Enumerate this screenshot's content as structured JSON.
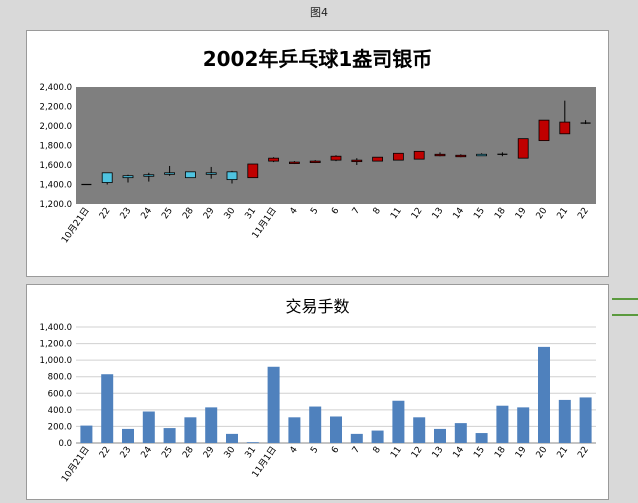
{
  "figure_label": "图4",
  "colors": {
    "plot_bg_candle": "#7f7f7f",
    "up_candle": "#c00000",
    "down_candle": "#4fc3e0",
    "volume_bar": "#4f81bd",
    "grid": "#d0d0d0",
    "side_line": "#5b9a3e"
  },
  "chart_data": [
    {
      "type": "candlestick",
      "title": "2002年乒乓球1盎司银币",
      "categories": [
        "10月21日",
        "22",
        "23",
        "24",
        "25",
        "28",
        "29",
        "30",
        "31",
        "11月1日",
        "4",
        "5",
        "6",
        "7",
        "8",
        "11",
        "12",
        "13",
        "14",
        "15",
        "18",
        "19",
        "20",
        "21",
        "22"
      ],
      "ylim": [
        1200,
        2400
      ],
      "yticks": [
        "1,200.0",
        "1,400.0",
        "1,600.0",
        "1,800.0",
        "2,000.0",
        "2,200.0",
        "2,400.0"
      ],
      "ytick_values": [
        1200,
        1400,
        1600,
        1800,
        2000,
        2200,
        2400
      ],
      "grid": false,
      "series": [
        {
          "values_open": [
            1400,
            1520,
            1490,
            1500,
            1520,
            1530,
            1520,
            1530,
            1470,
            1640,
            1620,
            1630,
            1650,
            1640,
            1640,
            1650,
            1660,
            1700,
            1690,
            1710,
            1710,
            1670,
            1850,
            1920,
            2030
          ],
          "values_close": [
            1400,
            1420,
            1470,
            1490,
            1510,
            1470,
            1510,
            1450,
            1610,
            1670,
            1630,
            1640,
            1690,
            1650,
            1680,
            1720,
            1740,
            1710,
            1700,
            1700,
            1710,
            1870,
            2060,
            2040,
            2030
          ],
          "values_high": [
            1400,
            1520,
            1500,
            1520,
            1590,
            1530,
            1580,
            1540,
            1610,
            1680,
            1640,
            1650,
            1700,
            1670,
            1680,
            1720,
            1740,
            1730,
            1710,
            1720,
            1730,
            1870,
            2060,
            2260,
            2060
          ],
          "values_low": [
            1400,
            1400,
            1420,
            1430,
            1490,
            1470,
            1460,
            1410,
            1470,
            1630,
            1610,
            1620,
            1640,
            1600,
            1640,
            1650,
            1660,
            1690,
            1680,
            1700,
            1690,
            1670,
            1850,
            1920,
            2020
          ]
        }
      ]
    },
    {
      "type": "bar",
      "title": "交易手数",
      "categories": [
        "10月21日",
        "22",
        "23",
        "24",
        "25",
        "28",
        "29",
        "30",
        "31",
        "11月1日",
        "4",
        "5",
        "6",
        "7",
        "8",
        "11",
        "12",
        "13",
        "14",
        "15",
        "18",
        "19",
        "20",
        "21",
        "22"
      ],
      "ylim": [
        0,
        1400
      ],
      "yticks": [
        "0.0",
        "200.0",
        "400.0",
        "600.0",
        "800.0",
        "1,000.0",
        "1,200.0",
        "1,400.0"
      ],
      "ytick_values": [
        0,
        200,
        400,
        600,
        800,
        1000,
        1200,
        1400
      ],
      "grid": true,
      "series": [
        {
          "values": [
            210,
            830,
            170,
            380,
            180,
            310,
            430,
            110,
            10,
            920,
            310,
            440,
            320,
            110,
            150,
            510,
            310,
            170,
            240,
            120,
            450,
            430,
            1160,
            520,
            550
          ]
        }
      ]
    }
  ]
}
